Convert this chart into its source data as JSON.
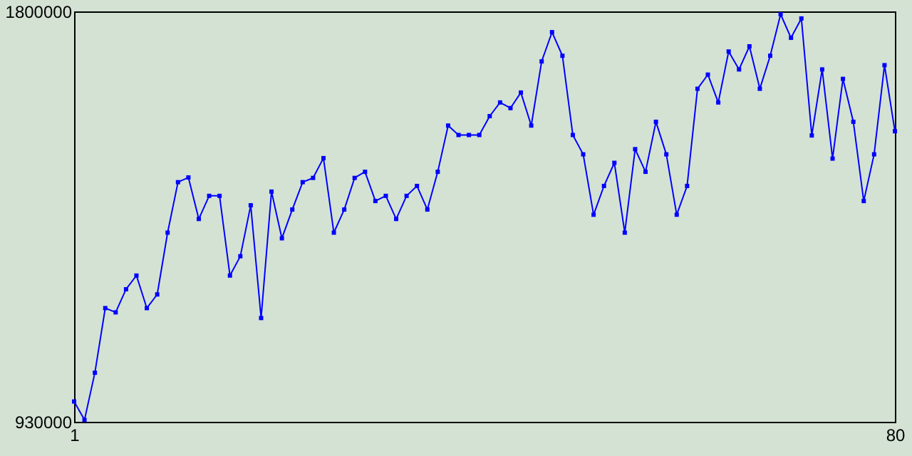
{
  "chart_data": {
    "type": "line",
    "x": [
      1,
      2,
      3,
      4,
      5,
      6,
      7,
      8,
      9,
      10,
      11,
      12,
      13,
      14,
      15,
      16,
      17,
      18,
      19,
      20,
      21,
      22,
      23,
      24,
      25,
      26,
      27,
      28,
      29,
      30,
      31,
      32,
      33,
      34,
      35,
      36,
      37,
      38,
      39,
      40,
      41,
      42,
      43,
      44,
      45,
      46,
      47,
      48,
      49,
      50,
      51,
      52,
      53,
      54,
      55,
      56,
      57,
      58,
      59,
      60,
      61,
      62,
      63,
      64,
      65,
      66,
      67,
      68,
      69,
      70,
      71,
      72,
      73,
      74,
      75,
      76,
      77,
      78,
      79,
      80
    ],
    "series": [
      {
        "color": "#0000ff",
        "values": [
          973000,
          934000,
          1034000,
          1171000,
          1162000,
          1211000,
          1240000,
          1171000,
          1200000,
          1331000,
          1438000,
          1448000,
          1360000,
          1409000,
          1409000,
          1240000,
          1281000,
          1389000,
          1150000,
          1418000,
          1319000,
          1380000,
          1438000,
          1447000,
          1489000,
          1331000,
          1380000,
          1447000,
          1460000,
          1398000,
          1409000,
          1360000,
          1409000,
          1430000,
          1380000,
          1460000,
          1558000,
          1538000,
          1538000,
          1538000,
          1578000,
          1607000,
          1595000,
          1628000,
          1558000,
          1694000,
          1756000,
          1706000,
          1538000,
          1497000,
          1369000,
          1430000,
          1479000,
          1331000,
          1508000,
          1460000,
          1566000,
          1497000,
          1369000,
          1430000,
          1636000,
          1666000,
          1607000,
          1715000,
          1677000,
          1726000,
          1636000,
          1706000,
          1794000,
          1744000,
          1785000,
          1537000,
          1677000,
          1488000,
          1657000,
          1566000,
          1398000,
          1497000,
          1686000,
          1546000
        ]
      }
    ],
    "xlim": [
      1,
      80
    ],
    "xticks": [
      1,
      80
    ],
    "ylim": [
      930000,
      1800000
    ],
    "yticks": [
      930000,
      1800000
    ],
    "marker": "square",
    "grid": false
  }
}
